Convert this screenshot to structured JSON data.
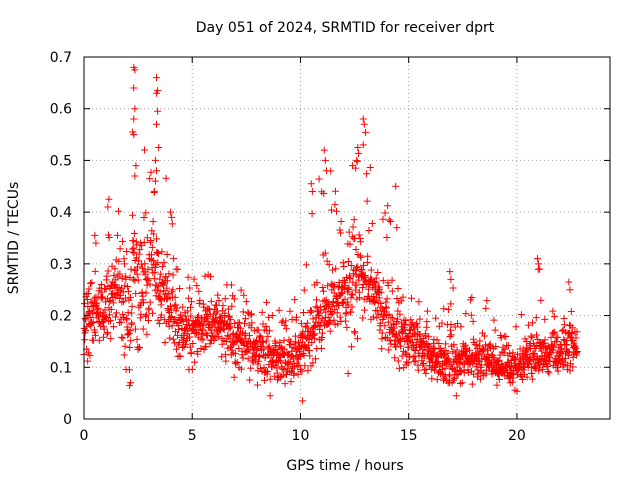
{
  "chart_data": {
    "type": "scatter",
    "title": "Day 051 of 2024, SRMTID for receiver dprt",
    "xlabel": "GPS time / hours",
    "ylabel": "SRMTID / TECUs",
    "xlim": [
      0,
      24.3
    ],
    "ylim": [
      0,
      0.7
    ],
    "x_ticks": [
      0,
      5,
      10,
      15,
      20
    ],
    "x_tick_labels": [
      "0",
      "5",
      "10",
      "15",
      "20"
    ],
    "y_ticks": [
      0,
      0.1,
      0.2,
      0.3,
      0.4,
      0.5,
      0.6,
      0.7
    ],
    "y_tick_labels": [
      "0",
      "0.1",
      "0.2",
      "0.3",
      "0.4",
      "0.5",
      "0.6",
      "0.7"
    ],
    "grid": true,
    "marker": "+",
    "series": [
      {
        "name": "SRMTID",
        "color": "#ff0000",
        "profile": {
          "hours": [
            0.0,
            0.5,
            1.0,
            1.5,
            2.0,
            2.5,
            3.0,
            3.5,
            4.0,
            4.5,
            5.0,
            5.5,
            6.0,
            6.5,
            7.0,
            7.5,
            8.0,
            8.5,
            9.0,
            9.5,
            10.0,
            10.5,
            11.0,
            11.5,
            12.0,
            12.5,
            13.0,
            13.5,
            14.0,
            14.5,
            15.0,
            15.5,
            16.0,
            16.5,
            17.0,
            17.5,
            18.0,
            18.5,
            19.0,
            19.5,
            20.0,
            20.5,
            21.0,
            21.5,
            22.0,
            22.5,
            22.8
          ],
          "median_tecu": [
            0.19,
            0.2,
            0.22,
            0.25,
            0.2,
            0.24,
            0.27,
            0.25,
            0.2,
            0.17,
            0.17,
            0.17,
            0.19,
            0.18,
            0.15,
            0.14,
            0.14,
            0.12,
            0.11,
            0.12,
            0.13,
            0.16,
            0.2,
            0.22,
            0.24,
            0.26,
            0.27,
            0.22,
            0.18,
            0.15,
            0.15,
            0.14,
            0.12,
            0.11,
            0.1,
            0.11,
            0.12,
            0.12,
            0.1,
            0.1,
            0.1,
            0.11,
            0.12,
            0.12,
            0.13,
            0.14,
            0.14
          ],
          "max_tecu": [
            0.27,
            0.3,
            0.36,
            0.43,
            0.36,
            0.68,
            0.5,
            0.66,
            0.4,
            0.3,
            0.27,
            0.28,
            0.28,
            0.27,
            0.26,
            0.24,
            0.25,
            0.23,
            0.22,
            0.22,
            0.25,
            0.45,
            0.52,
            0.5,
            0.5,
            0.52,
            0.58,
            0.38,
            0.45,
            0.28,
            0.25,
            0.24,
            0.22,
            0.2,
            0.28,
            0.19,
            0.26,
            0.25,
            0.2,
            0.2,
            0.22,
            0.2,
            0.31,
            0.22,
            0.27,
            0.27,
            0.2
          ],
          "min_tecu": [
            0.09,
            0.12,
            0.14,
            0.15,
            0.07,
            0.06,
            0.12,
            0.15,
            0.12,
            0.1,
            0.07,
            0.1,
            0.11,
            0.09,
            0.07,
            0.07,
            0.06,
            0.05,
            0.06,
            0.07,
            0.04,
            0.09,
            0.12,
            0.14,
            0.16,
            0.09,
            0.2,
            0.14,
            0.08,
            0.06,
            0.07,
            0.07,
            0.07,
            0.06,
            0.05,
            0.05,
            0.06,
            0.07,
            0.06,
            0.06,
            0.05,
            0.05,
            0.06,
            0.07,
            0.07,
            0.08,
            0.1
          ]
        },
        "highlights": [
          {
            "x": 2.3,
            "y": 0.68
          },
          {
            "x": 2.35,
            "y": 0.675
          },
          {
            "x": 2.3,
            "y": 0.64
          },
          {
            "x": 2.35,
            "y": 0.6
          },
          {
            "x": 2.3,
            "y": 0.58
          },
          {
            "x": 2.25,
            "y": 0.555
          },
          {
            "x": 2.3,
            "y": 0.55
          },
          {
            "x": 2.4,
            "y": 0.49
          },
          {
            "x": 2.35,
            "y": 0.47
          },
          {
            "x": 3.35,
            "y": 0.66
          },
          {
            "x": 3.4,
            "y": 0.635
          },
          {
            "x": 3.35,
            "y": 0.63
          },
          {
            "x": 3.4,
            "y": 0.595
          },
          {
            "x": 3.35,
            "y": 0.57
          },
          {
            "x": 3.45,
            "y": 0.525
          },
          {
            "x": 3.3,
            "y": 0.5
          },
          {
            "x": 3.35,
            "y": 0.48
          },
          {
            "x": 3.3,
            "y": 0.46
          },
          {
            "x": 1.15,
            "y": 0.425
          },
          {
            "x": 1.1,
            "y": 0.41
          },
          {
            "x": 0.5,
            "y": 0.355
          },
          {
            "x": 0.55,
            "y": 0.34
          },
          {
            "x": 4.0,
            "y": 0.4
          },
          {
            "x": 4.05,
            "y": 0.39
          },
          {
            "x": 11.1,
            "y": 0.52
          },
          {
            "x": 11.15,
            "y": 0.5
          },
          {
            "x": 11.2,
            "y": 0.48
          },
          {
            "x": 12.65,
            "y": 0.525
          },
          {
            "x": 12.6,
            "y": 0.5
          },
          {
            "x": 12.55,
            "y": 0.485
          },
          {
            "x": 12.9,
            "y": 0.58
          },
          {
            "x": 12.95,
            "y": 0.57
          },
          {
            "x": 12.9,
            "y": 0.53
          },
          {
            "x": 12.4,
            "y": 0.49
          },
          {
            "x": 10.5,
            "y": 0.455
          },
          {
            "x": 10.55,
            "y": 0.44
          },
          {
            "x": 14.4,
            "y": 0.45
          },
          {
            "x": 14.45,
            "y": 0.37
          },
          {
            "x": 16.9,
            "y": 0.285
          },
          {
            "x": 16.95,
            "y": 0.27
          },
          {
            "x": 20.95,
            "y": 0.31
          },
          {
            "x": 21.0,
            "y": 0.3
          },
          {
            "x": 21.05,
            "y": 0.29
          },
          {
            "x": 22.4,
            "y": 0.265
          },
          {
            "x": 22.45,
            "y": 0.25
          },
          {
            "x": 12.2,
            "y": 0.088
          },
          {
            "x": 10.1,
            "y": 0.035
          },
          {
            "x": 8.6,
            "y": 0.045
          },
          {
            "x": 2.1,
            "y": 0.065
          },
          {
            "x": 2.15,
            "y": 0.07
          },
          {
            "x": 17.2,
            "y": 0.045
          }
        ]
      }
    ]
  }
}
